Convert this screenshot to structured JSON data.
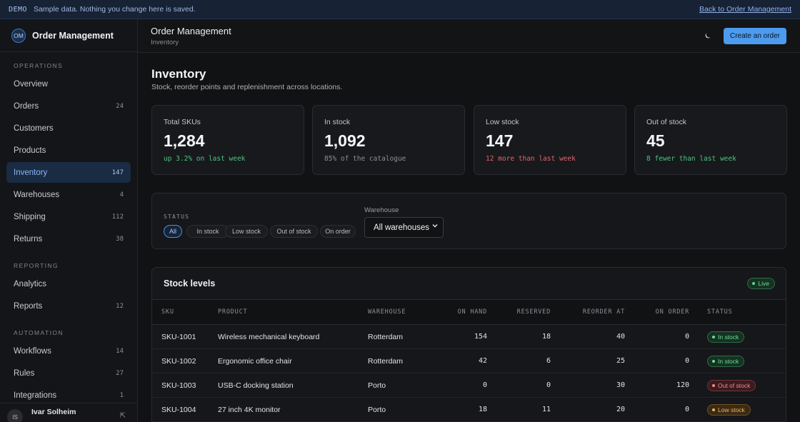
{
  "banner": {
    "tag": "DEMO",
    "message": "Sample data. Nothing you change here is saved.",
    "back_link": "Back to Order Management"
  },
  "brand": {
    "initials": "OM",
    "name": "Order Management"
  },
  "sidebar": {
    "sections": [
      {
        "label": "OPERATIONS",
        "items": [
          {
            "label": "Overview",
            "count": ""
          },
          {
            "label": "Orders",
            "count": "24"
          },
          {
            "label": "Customers",
            "count": ""
          },
          {
            "label": "Products",
            "count": ""
          },
          {
            "label": "Inventory",
            "count": "147",
            "active": true
          },
          {
            "label": "Warehouses",
            "count": "4"
          },
          {
            "label": "Shipping",
            "count": "112"
          },
          {
            "label": "Returns",
            "count": "38"
          }
        ]
      },
      {
        "label": "REPORTING",
        "items": [
          {
            "label": "Analytics",
            "count": ""
          },
          {
            "label": "Reports",
            "count": "12"
          }
        ]
      },
      {
        "label": "AUTOMATION",
        "items": [
          {
            "label": "Workflows",
            "count": "14"
          },
          {
            "label": "Rules",
            "count": "27"
          },
          {
            "label": "Integrations",
            "count": "1"
          }
        ]
      }
    ],
    "user": {
      "initials": "IS",
      "name": "Ivar Solheim"
    }
  },
  "header": {
    "title": "Order Management",
    "breadcrumb": "Inventory",
    "theme_icon": "moon-icon",
    "cta": "Create an order"
  },
  "page": {
    "title": "Inventory",
    "subtitle": "Stock, reorder points and replenishment across locations."
  },
  "stats": [
    {
      "label": "Total SKUs",
      "value": "1,284",
      "note": "up 3.2% on last week",
      "tone": "#4cc47f"
    },
    {
      "label": "In stock",
      "value": "1,092",
      "note": "85% of the catalogue",
      "tone": "#8d9096"
    },
    {
      "label": "Low stock",
      "value": "147",
      "note": "12 more than last week",
      "tone": "#e0646b"
    },
    {
      "label": "Out of stock",
      "value": "45",
      "note": "8 fewer than last week",
      "tone": "#4cc47f"
    }
  ],
  "filters": {
    "status_label": "STATUS",
    "chips": [
      "All",
      "In stock",
      "Low stock",
      "Out of stock",
      "On order"
    ],
    "active_chip": "All",
    "warehouse_label": "Warehouse",
    "warehouse_value": "All warehouses"
  },
  "stock": {
    "title": "Stock levels",
    "live_label": "Live",
    "columns": [
      "SKU",
      "PRODUCT",
      "WAREHOUSE",
      "ON HAND",
      "RESERVED",
      "REORDER AT",
      "ON ORDER",
      "STATUS"
    ],
    "rows": [
      {
        "sku": "SKU-1001",
        "product": "Wireless mechanical keyboard",
        "warehouse": "Rotterdam",
        "on_hand": "154",
        "reserved": "18",
        "reorder_at": "40",
        "on_order": "0",
        "status": "In stock"
      },
      {
        "sku": "SKU-1002",
        "product": "Ergonomic office chair",
        "warehouse": "Rotterdam",
        "on_hand": "42",
        "reserved": "6",
        "reorder_at": "25",
        "on_order": "0",
        "status": "In stock"
      },
      {
        "sku": "SKU-1003",
        "product": "USB-C docking station",
        "warehouse": "Porto",
        "on_hand": "0",
        "reserved": "0",
        "reorder_at": "30",
        "on_order": "120",
        "status": "Out of stock"
      },
      {
        "sku": "SKU-1004",
        "product": "27 inch 4K monitor",
        "warehouse": "Porto",
        "on_hand": "18",
        "reserved": "11",
        "reorder_at": "20",
        "on_order": "0",
        "status": "Low stock"
      }
    ]
  },
  "status_colors": {
    "In stock": {
      "fg": "#6fdc98",
      "bg": "#153222",
      "border": "#2f6b48"
    },
    "Out of stock": {
      "fg": "#f08a8f",
      "bg": "#3a1b1e",
      "border": "#70343a"
    },
    "Low stock": {
      "fg": "#f0b45e",
      "bg": "#3a2a14",
      "border": "#6e5122"
    }
  }
}
